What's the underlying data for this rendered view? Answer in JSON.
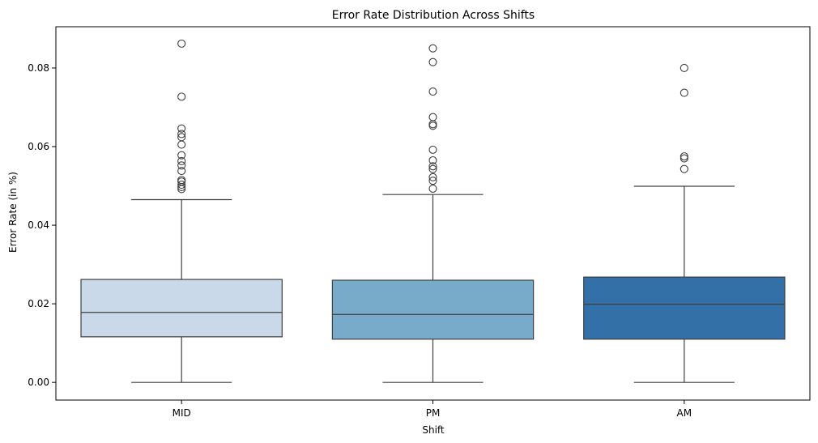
{
  "chart_data": {
    "type": "box",
    "title": "Error Rate Distribution Across Shifts",
    "xlabel": "Shift",
    "ylabel": "Error Rate (in %)",
    "ylim": [
      -0.0045,
      0.0905
    ],
    "yticks": [
      0.0,
      0.02,
      0.04,
      0.06,
      0.08
    ],
    "ytick_labels": [
      "0.00",
      "0.02",
      "0.04",
      "0.06",
      "0.08"
    ],
    "grid": false,
    "categories": [
      "MID",
      "PM",
      "AM"
    ],
    "boxes": [
      {
        "category": "MID",
        "color": "#c9d9ea",
        "whisker_low": 0.0,
        "q1": 0.0116,
        "median": 0.0178,
        "q3": 0.0262,
        "whisker_high": 0.0465,
        "outliers": [
          0.0862,
          0.0727,
          0.0646,
          0.0632,
          0.0624,
          0.0605,
          0.0578,
          0.0563,
          0.0552,
          0.0538,
          0.0515,
          0.0511,
          0.0503,
          0.0497,
          0.0492
        ]
      },
      {
        "category": "PM",
        "color": "#78abc9",
        "whisker_low": 0.0,
        "q1": 0.011,
        "median": 0.0173,
        "q3": 0.026,
        "whisker_high": 0.0478,
        "outliers": [
          0.085,
          0.0815,
          0.074,
          0.0675,
          0.0657,
          0.0653,
          0.0592,
          0.0565,
          0.055,
          0.0543,
          0.0522,
          0.0513,
          0.0493
        ]
      },
      {
        "category": "AM",
        "color": "#3370a8",
        "whisker_low": 0.0,
        "q1": 0.011,
        "median": 0.0199,
        "q3": 0.0268,
        "whisker_high": 0.0499,
        "outliers": [
          0.08,
          0.0737,
          0.0575,
          0.057,
          0.0543
        ]
      }
    ],
    "line_color": "#3f3f3f"
  }
}
